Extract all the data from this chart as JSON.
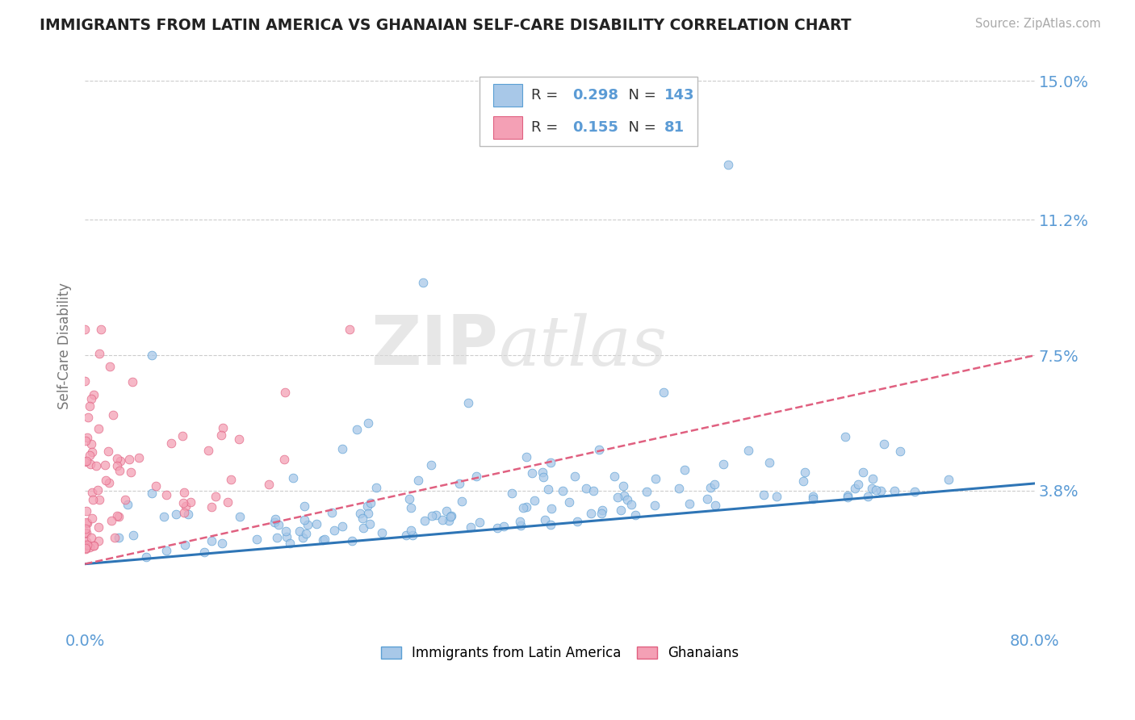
{
  "title": "IMMIGRANTS FROM LATIN AMERICA VS GHANAIAN SELF-CARE DISABILITY CORRELATION CHART",
  "source": "Source: ZipAtlas.com",
  "ylabel": "Self-Care Disability",
  "xlim": [
    0.0,
    0.8
  ],
  "ylim": [
    0.0,
    0.155
  ],
  "yticks": [
    0.038,
    0.075,
    0.112,
    0.15
  ],
  "ytick_labels": [
    "3.8%",
    "7.5%",
    "11.2%",
    "15.0%"
  ],
  "xtick_labels": [
    "0.0%",
    "80.0%"
  ],
  "grid_color": "#cccccc",
  "background_color": "#ffffff",
  "blue_color": "#a8c8e8",
  "pink_color": "#f4a0b5",
  "blue_edge_color": "#5a9fd4",
  "pink_edge_color": "#e06080",
  "blue_line_color": "#2e75b6",
  "pink_line_color": "#e06080",
  "R_blue": 0.298,
  "N_blue": 143,
  "R_pink": 0.155,
  "N_pink": 81,
  "legend_label_blue": "Immigrants from Latin America",
  "legend_label_pink": "Ghanaians",
  "watermark_zip": "ZIP",
  "watermark_atlas": "atlas",
  "title_color": "#222222",
  "tick_label_color": "#5b9bd5",
  "blue_line_y_start": 0.018,
  "blue_line_y_end": 0.04,
  "pink_line_y_start": 0.018,
  "pink_line_y_end": 0.075
}
